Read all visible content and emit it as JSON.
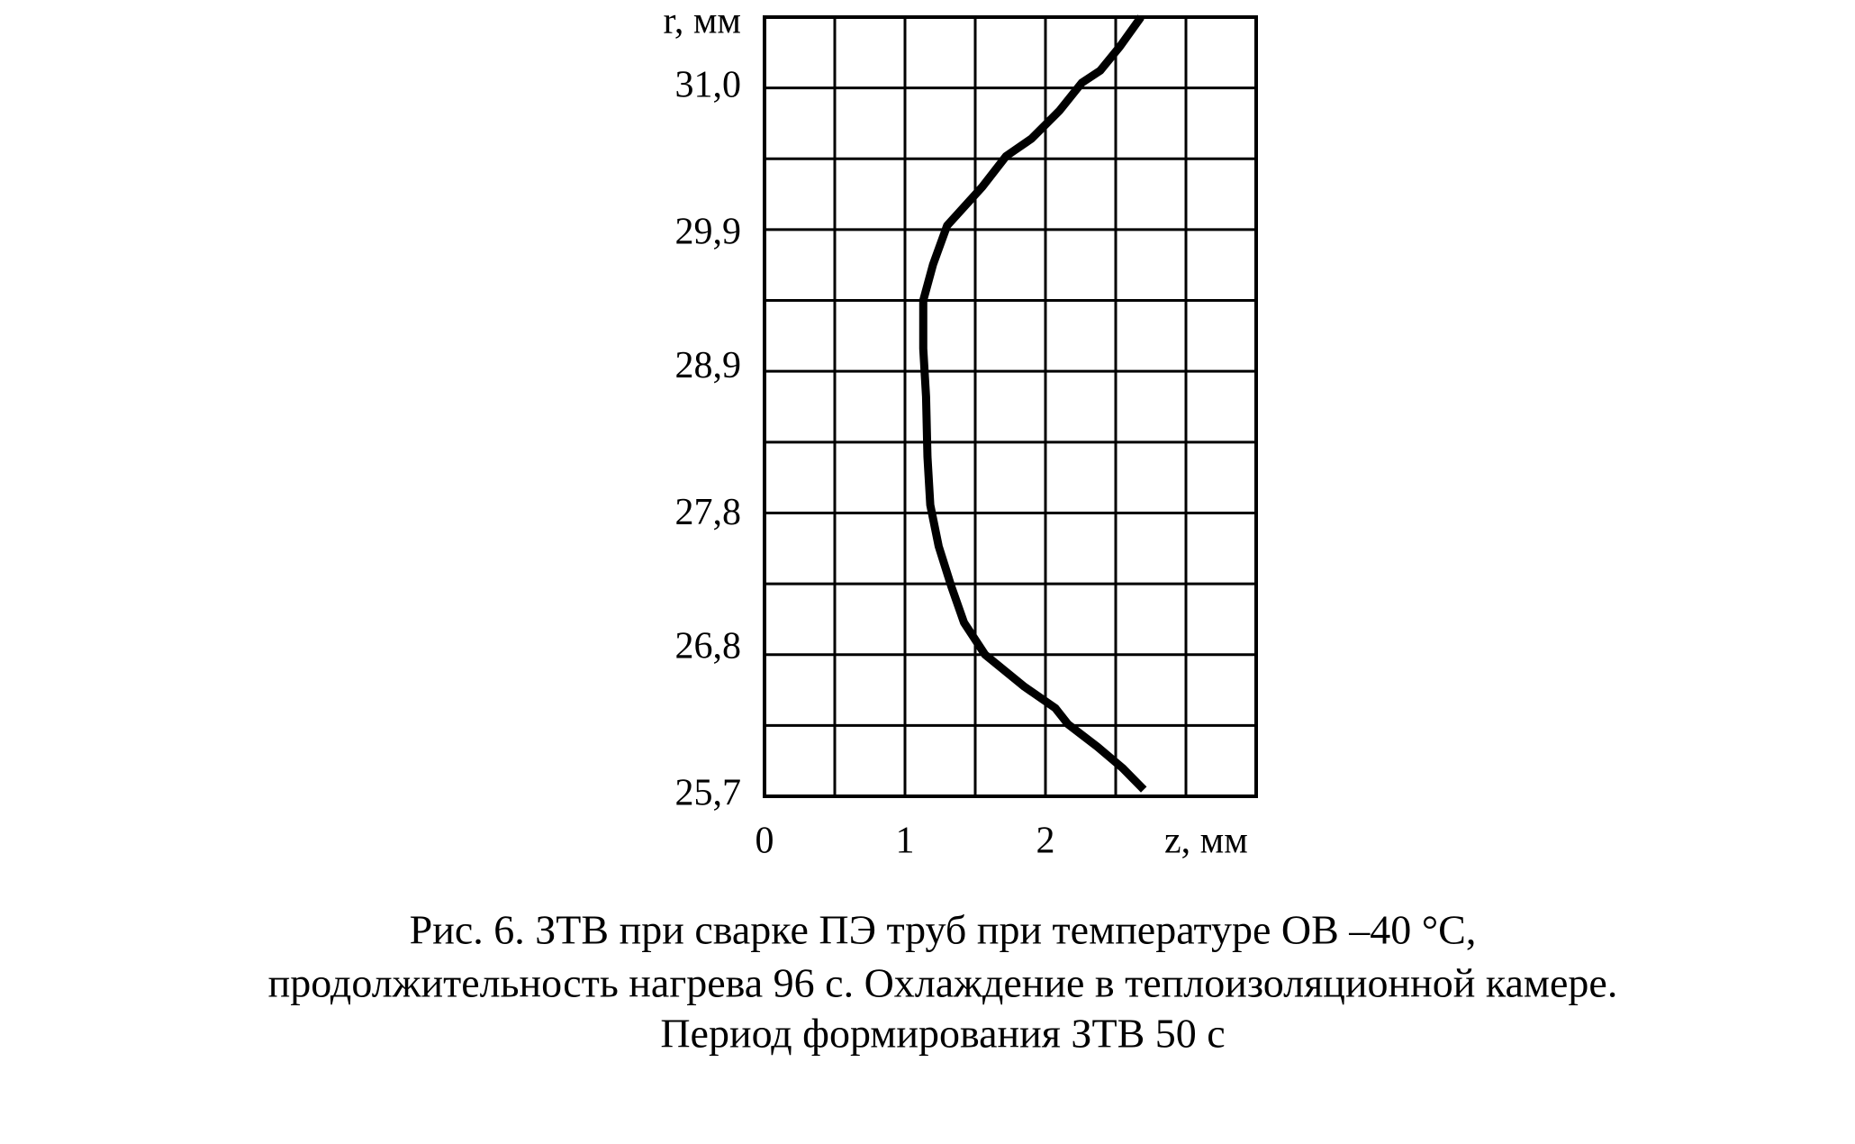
{
  "chart_data": {
    "type": "line",
    "ylabel": "r, мм",
    "xlabel": "z, мм",
    "caption": [
      "Рис. 6. ЗТВ при сварке ПЭ труб при температуре ОВ –40 °С,",
      "продолжительность нагрева 96 с. Охлаждение в теплоизоляционной камере.",
      "Период формирования ЗТВ 50 с"
    ],
    "x": [
      2.7,
      2.55,
      2.37,
      2.16,
      2.07,
      1.85,
      1.57,
      1.42,
      1.33,
      1.24,
      1.18,
      1.16,
      1.15,
      1.13,
      1.13,
      1.2,
      1.3,
      1.55,
      1.72,
      1.9,
      2.1,
      2.26,
      2.39,
      2.53,
      2.68
    ],
    "values": [
      25.75,
      25.91,
      26.07,
      26.24,
      26.36,
      26.52,
      26.76,
      27.0,
      27.27,
      27.57,
      27.88,
      28.24,
      28.69,
      29.05,
      29.41,
      29.68,
      29.97,
      30.26,
      30.49,
      30.62,
      30.83,
      31.04,
      31.13,
      31.31,
      31.53
    ],
    "color": "#000000",
    "xlim": [
      0,
      3.5
    ],
    "ylim": [
      25.7,
      31.53
    ],
    "xticks": [
      0,
      1,
      2
    ],
    "yticks": [
      {
        "value": 25.7,
        "label": "25,7"
      },
      {
        "value": 26.8,
        "label": "26,8"
      },
      {
        "value": 27.8,
        "label": "27,8"
      },
      {
        "value": 28.9,
        "label": "28,9"
      },
      {
        "value": 29.9,
        "label": "29,9"
      },
      {
        "value": 31.0,
        "label": "31,0"
      }
    ],
    "xgrid": [
      0.5,
      1,
      1.5,
      2,
      2.5,
      3
    ],
    "ygrid": [
      26.23,
      26.76,
      27.29,
      27.82,
      28.35,
      28.88,
      29.41,
      29.94,
      30.47,
      31.0
    ]
  }
}
